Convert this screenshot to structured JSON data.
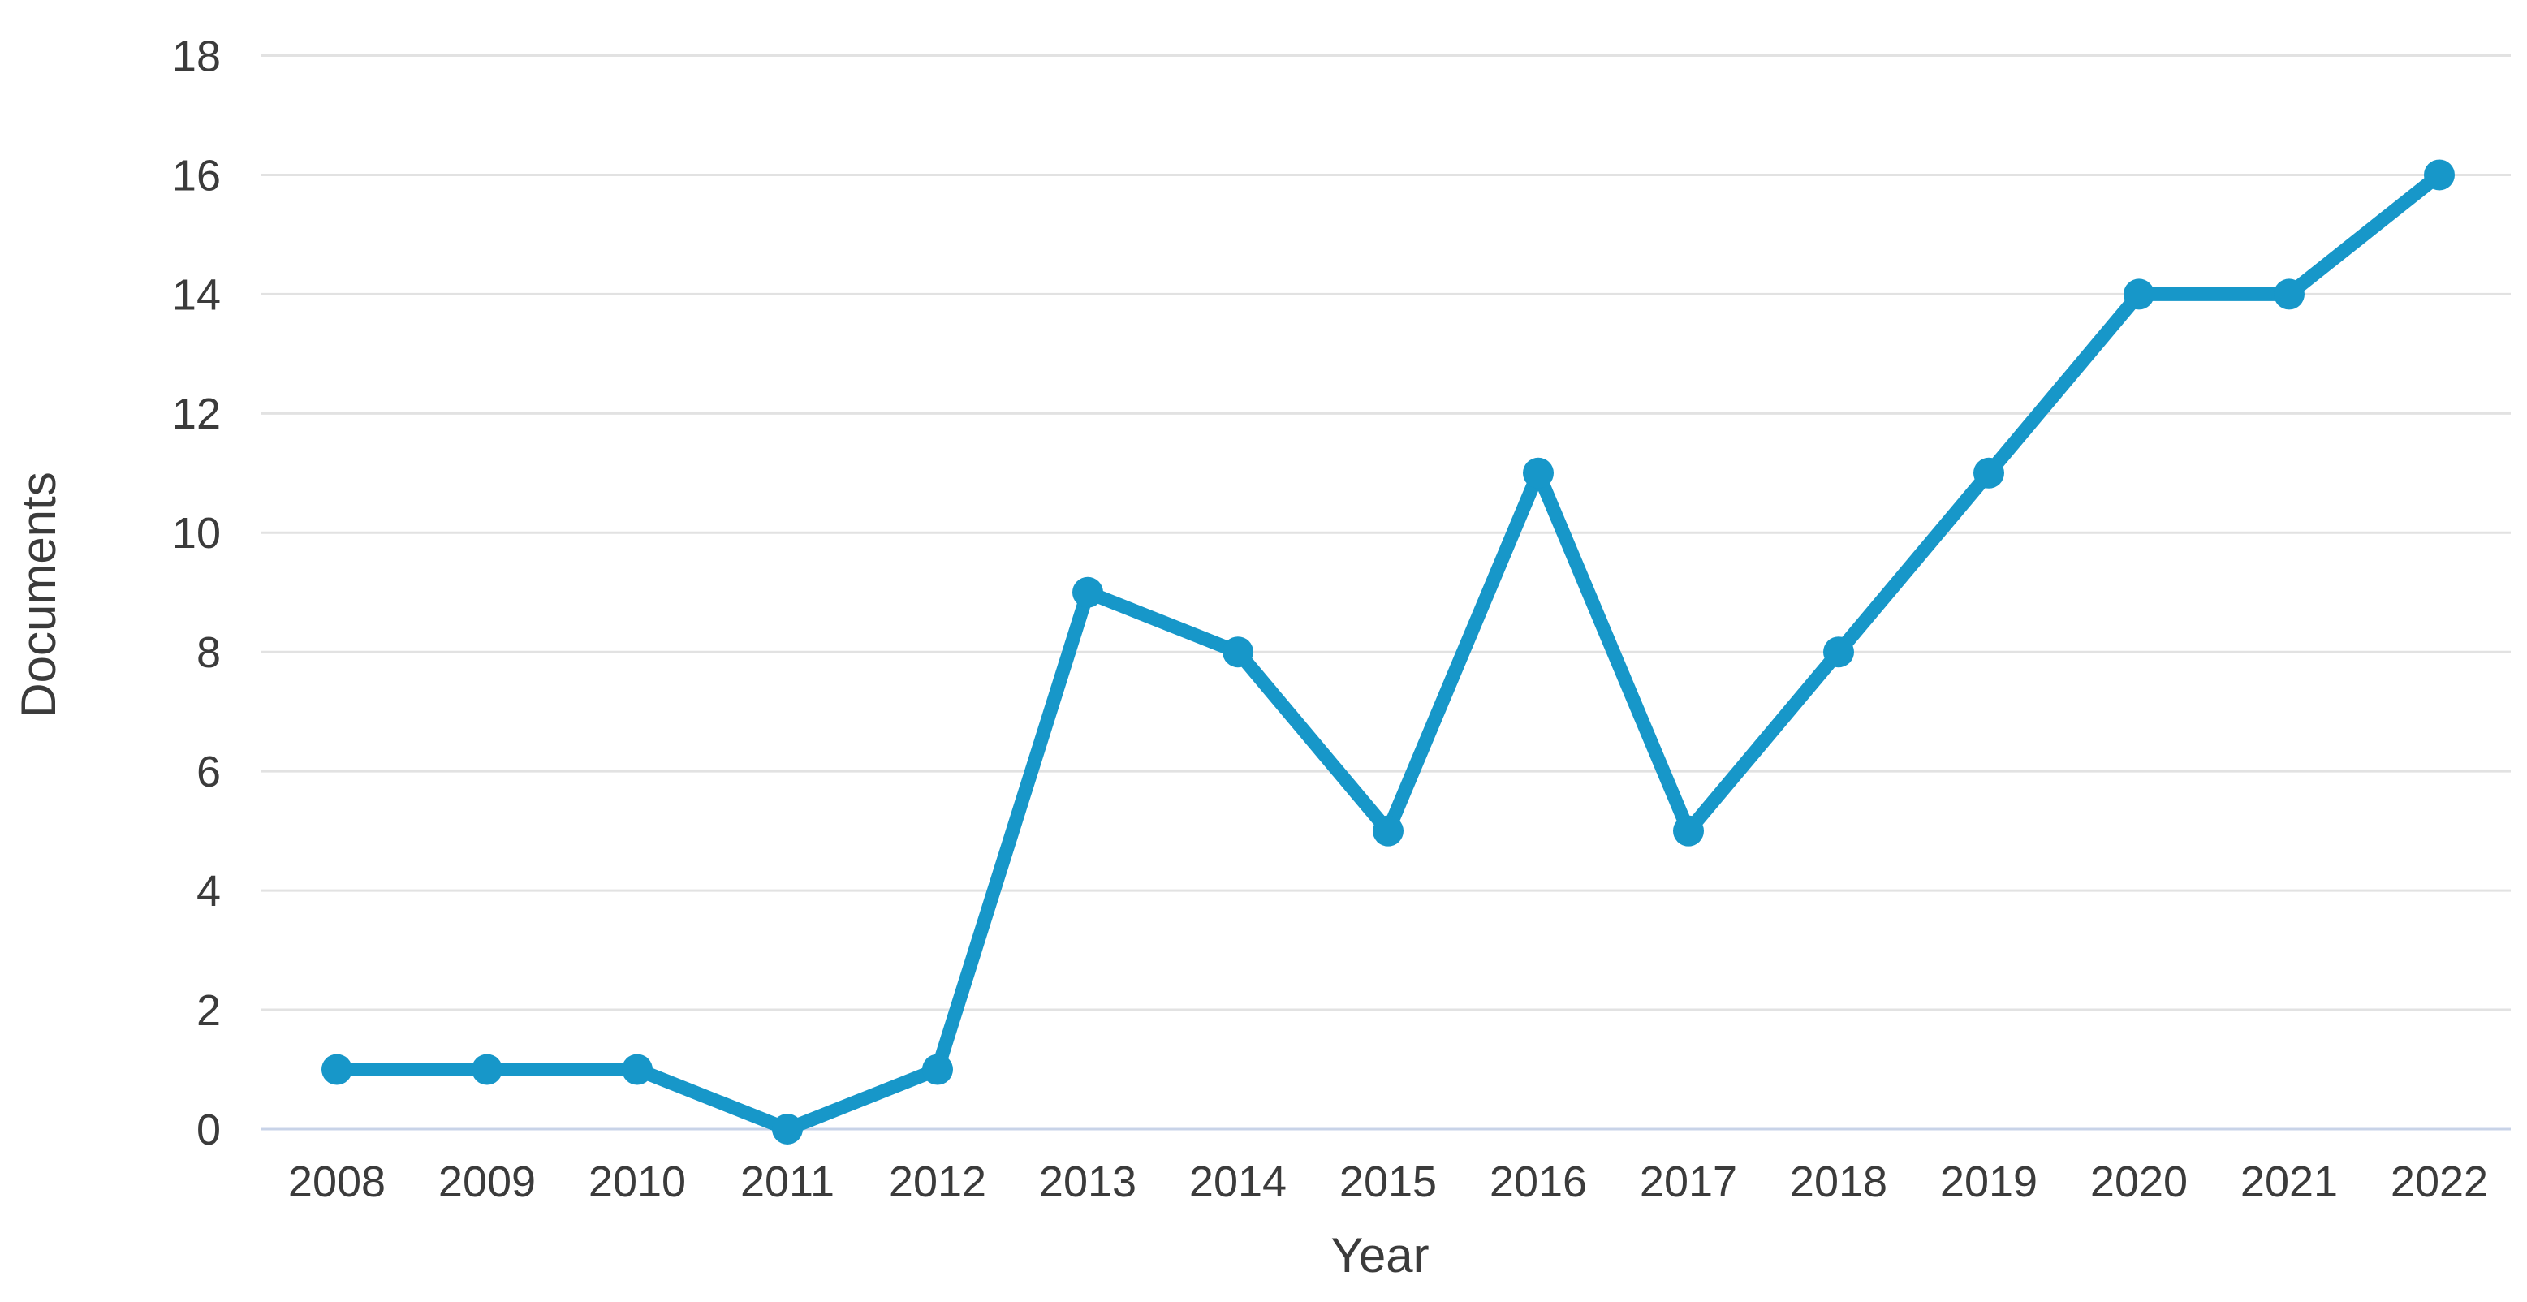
{
  "page": {
    "background_color": "#ffffff"
  },
  "chart_data": {
    "type": "line",
    "title": "",
    "xlabel": "Year",
    "ylabel": "Documents",
    "x": [
      2008,
      2009,
      2010,
      2011,
      2012,
      2013,
      2014,
      2015,
      2016,
      2017,
      2018,
      2019,
      2020,
      2021,
      2022
    ],
    "series": [
      {
        "name": "Documents",
        "values": [
          1,
          1,
          1,
          0,
          1,
          9,
          8,
          5,
          11,
          5,
          8,
          11,
          14,
          14,
          16
        ]
      }
    ],
    "ylim": [
      0,
      18
    ],
    "yticks": [
      0,
      2,
      4,
      6,
      8,
      10,
      12,
      14,
      16,
      18
    ],
    "grid": "horizontal-only",
    "legend_position": "none",
    "marker": "circle",
    "colors": {
      "line": "#1797c9",
      "marker": "#1797c9",
      "gridline": "#e2e2e2",
      "zero_line": "#c8d3e8",
      "tick_text": "#3b3b3b",
      "axis_title_text": "#3b3b3b"
    }
  }
}
